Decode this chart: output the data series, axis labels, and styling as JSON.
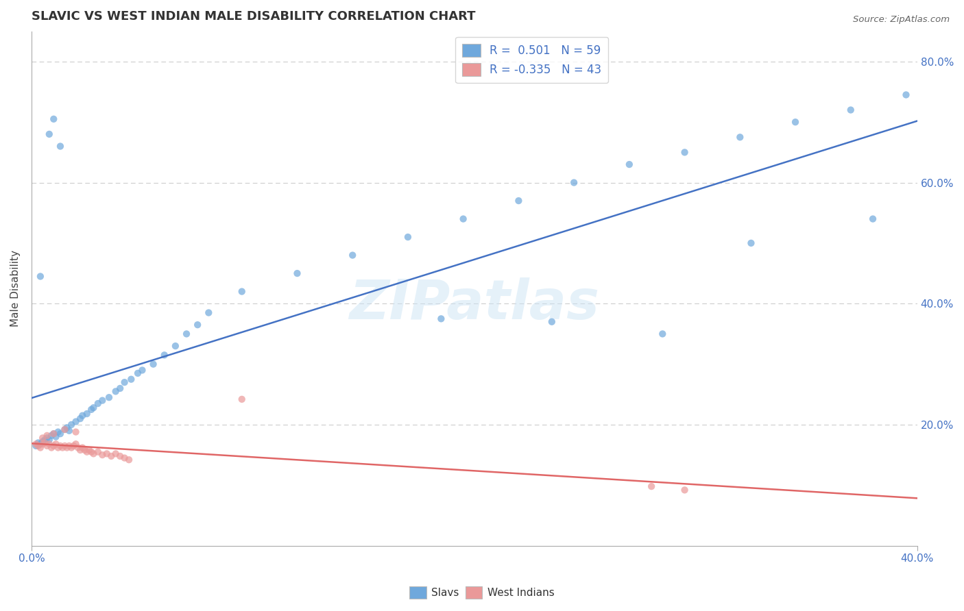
{
  "title": "SLAVIC VS WEST INDIAN MALE DISABILITY CORRELATION CHART",
  "source": "Source: ZipAtlas.com",
  "ylabel": "Male Disability",
  "xlim": [
    0.0,
    0.4
  ],
  "ylim": [
    0.0,
    0.85
  ],
  "slavs_color": "#6fa8dc",
  "west_indians_color": "#ea9999",
  "slavs_line_color": "#4472c4",
  "west_indians_line_color": "#e06666",
  "watermark": "ZIPatlas",
  "slavs_scatter": [
    [
      0.002,
      0.165
    ],
    [
      0.003,
      0.17
    ],
    [
      0.004,
      0.168
    ],
    [
      0.005,
      0.172
    ],
    [
      0.006,
      0.175
    ],
    [
      0.007,
      0.178
    ],
    [
      0.008,
      0.175
    ],
    [
      0.009,
      0.182
    ],
    [
      0.01,
      0.185
    ],
    [
      0.011,
      0.18
    ],
    [
      0.012,
      0.188
    ],
    [
      0.013,
      0.185
    ],
    [
      0.015,
      0.192
    ],
    [
      0.016,
      0.195
    ],
    [
      0.017,
      0.19
    ],
    [
      0.018,
      0.2
    ],
    [
      0.02,
      0.205
    ],
    [
      0.022,
      0.21
    ],
    [
      0.023,
      0.215
    ],
    [
      0.025,
      0.218
    ],
    [
      0.027,
      0.225
    ],
    [
      0.028,
      0.228
    ],
    [
      0.03,
      0.235
    ],
    [
      0.032,
      0.24
    ],
    [
      0.035,
      0.245
    ],
    [
      0.038,
      0.255
    ],
    [
      0.04,
      0.26
    ],
    [
      0.042,
      0.27
    ],
    [
      0.045,
      0.275
    ],
    [
      0.048,
      0.285
    ],
    [
      0.05,
      0.29
    ],
    [
      0.055,
      0.3
    ],
    [
      0.06,
      0.315
    ],
    [
      0.065,
      0.33
    ],
    [
      0.07,
      0.35
    ],
    [
      0.075,
      0.365
    ],
    [
      0.08,
      0.385
    ],
    [
      0.008,
      0.68
    ],
    [
      0.01,
      0.705
    ],
    [
      0.013,
      0.66
    ],
    [
      0.004,
      0.445
    ],
    [
      0.095,
      0.42
    ],
    [
      0.12,
      0.45
    ],
    [
      0.145,
      0.48
    ],
    [
      0.17,
      0.51
    ],
    [
      0.195,
      0.54
    ],
    [
      0.22,
      0.57
    ],
    [
      0.245,
      0.6
    ],
    [
      0.27,
      0.63
    ],
    [
      0.295,
      0.65
    ],
    [
      0.32,
      0.675
    ],
    [
      0.345,
      0.7
    ],
    [
      0.37,
      0.72
    ],
    [
      0.395,
      0.745
    ],
    [
      0.38,
      0.54
    ],
    [
      0.325,
      0.5
    ],
    [
      0.285,
      0.35
    ],
    [
      0.235,
      0.37
    ],
    [
      0.185,
      0.375
    ]
  ],
  "west_indians_scatter": [
    [
      0.002,
      0.168
    ],
    [
      0.003,
      0.165
    ],
    [
      0.004,
      0.162
    ],
    [
      0.005,
      0.168
    ],
    [
      0.006,
      0.17
    ],
    [
      0.007,
      0.165
    ],
    [
      0.008,
      0.168
    ],
    [
      0.009,
      0.162
    ],
    [
      0.01,
      0.165
    ],
    [
      0.011,
      0.168
    ],
    [
      0.012,
      0.162
    ],
    [
      0.013,
      0.165
    ],
    [
      0.014,
      0.162
    ],
    [
      0.015,
      0.165
    ],
    [
      0.016,
      0.162
    ],
    [
      0.017,
      0.165
    ],
    [
      0.018,
      0.162
    ],
    [
      0.019,
      0.165
    ],
    [
      0.02,
      0.168
    ],
    [
      0.021,
      0.162
    ],
    [
      0.022,
      0.158
    ],
    [
      0.023,
      0.162
    ],
    [
      0.024,
      0.158
    ],
    [
      0.025,
      0.155
    ],
    [
      0.026,
      0.158
    ],
    [
      0.027,
      0.155
    ],
    [
      0.028,
      0.152
    ],
    [
      0.03,
      0.155
    ],
    [
      0.032,
      0.15
    ],
    [
      0.034,
      0.152
    ],
    [
      0.036,
      0.148
    ],
    [
      0.038,
      0.152
    ],
    [
      0.04,
      0.148
    ],
    [
      0.042,
      0.145
    ],
    [
      0.044,
      0.142
    ],
    [
      0.005,
      0.178
    ],
    [
      0.007,
      0.182
    ],
    [
      0.01,
      0.185
    ],
    [
      0.015,
      0.192
    ],
    [
      0.02,
      0.188
    ],
    [
      0.095,
      0.242
    ],
    [
      0.28,
      0.098
    ],
    [
      0.295,
      0.092
    ]
  ]
}
